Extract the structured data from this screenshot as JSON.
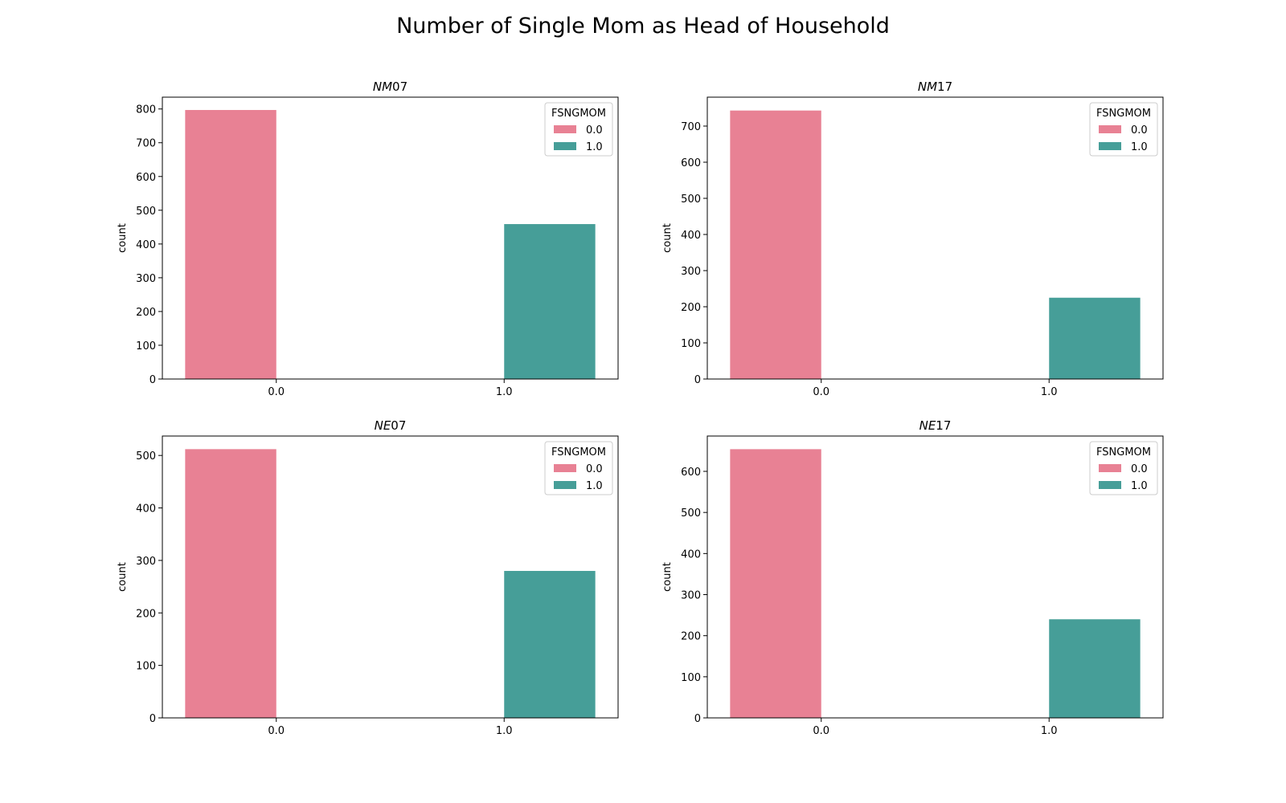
{
  "figure": {
    "title": "Number of Single Mom as Head of Household"
  },
  "chart_data": [
    {
      "type": "bar",
      "title": "NM07",
      "title_italic": "NM",
      "title_rest": "07",
      "categories": [
        "0.0",
        "1.0"
      ],
      "series": [
        {
          "name": "0.0",
          "color": "#e88194",
          "values": [
            797,
            0
          ]
        },
        {
          "name": "1.0",
          "color": "#469e98",
          "values": [
            0,
            459
          ]
        }
      ],
      "xlabel": "",
      "ylabel": "count",
      "ylim": [
        0,
        835
      ],
      "yticks": [
        0,
        100,
        200,
        300,
        400,
        500,
        600,
        700,
        800
      ],
      "legend": {
        "title": "FSNGMOM",
        "position": "upper right"
      },
      "grid": false
    },
    {
      "type": "bar",
      "title": "NM17",
      "title_italic": "NM",
      "title_rest": "17",
      "categories": [
        "0.0",
        "1.0"
      ],
      "series": [
        {
          "name": "0.0",
          "color": "#e88194",
          "values": [
            743,
            0
          ]
        },
        {
          "name": "1.0",
          "color": "#469e98",
          "values": [
            0,
            225
          ]
        }
      ],
      "xlabel": "",
      "ylabel": "count",
      "ylim": [
        0,
        780
      ],
      "yticks": [
        0,
        100,
        200,
        300,
        400,
        500,
        600,
        700
      ],
      "legend": {
        "title": "FSNGMOM",
        "position": "upper right"
      },
      "grid": false
    },
    {
      "type": "bar",
      "title": "NE07",
      "title_italic": "NE",
      "title_rest": "07",
      "categories": [
        "0.0",
        "1.0"
      ],
      "series": [
        {
          "name": "0.0",
          "color": "#e88194",
          "values": [
            512,
            0
          ]
        },
        {
          "name": "1.0",
          "color": "#469e98",
          "values": [
            0,
            280
          ]
        }
      ],
      "xlabel": "",
      "ylabel": "count",
      "ylim": [
        0,
        537
      ],
      "yticks": [
        0,
        100,
        200,
        300,
        400,
        500
      ],
      "legend": {
        "title": "FSNGMOM",
        "position": "upper right"
      },
      "grid": false
    },
    {
      "type": "bar",
      "title": "NE17",
      "title_italic": "NE",
      "title_rest": "17",
      "categories": [
        "0.0",
        "1.0"
      ],
      "series": [
        {
          "name": "0.0",
          "color": "#e88194",
          "values": [
            654,
            0
          ]
        },
        {
          "name": "1.0",
          "color": "#469e98",
          "values": [
            0,
            240
          ]
        }
      ],
      "xlabel": "",
      "ylabel": "count",
      "ylim": [
        0,
        686
      ],
      "yticks": [
        0,
        100,
        200,
        300,
        400,
        500,
        600
      ],
      "legend": {
        "title": "FSNGMOM",
        "position": "upper right"
      },
      "grid": false
    }
  ]
}
